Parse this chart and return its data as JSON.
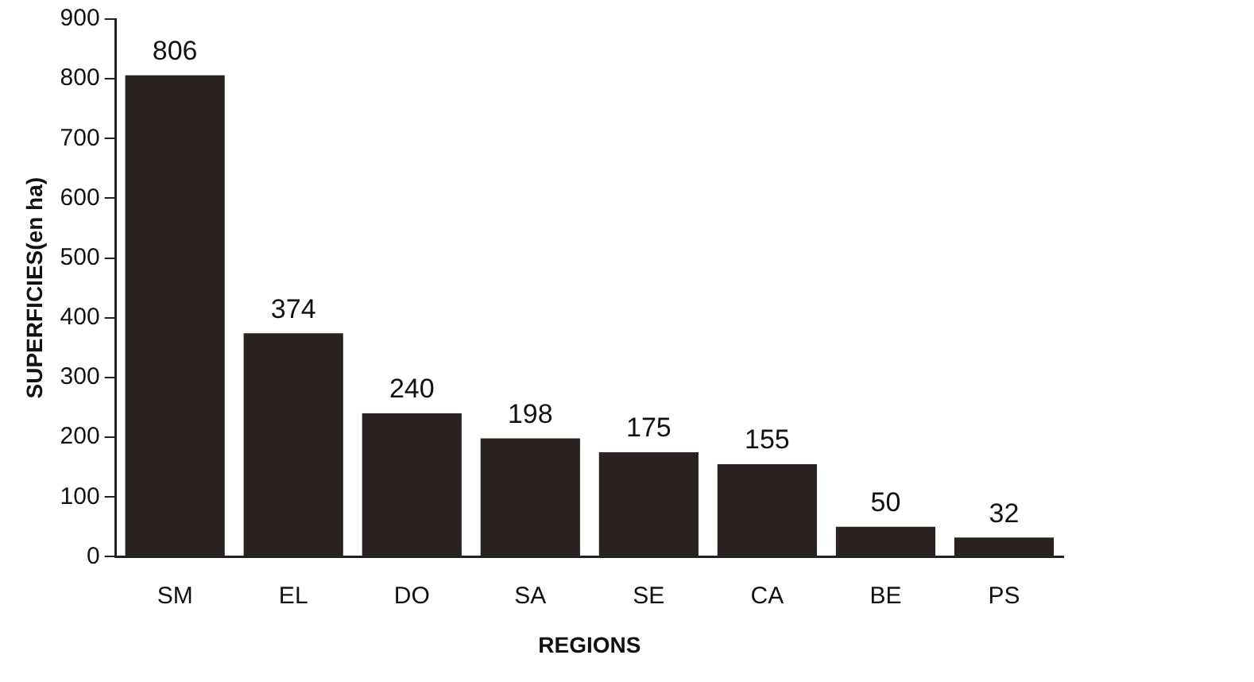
{
  "chart_data": {
    "type": "bar",
    "xlabel": "REGIONS",
    "ylabel": "SUPERFICIES(en ha)",
    "categories": [
      "SM",
      "EL",
      "DO",
      "SA",
      "SE",
      "CA",
      "BE",
      "PS"
    ],
    "values": [
      806,
      374,
      240,
      198,
      175,
      155,
      50,
      32
    ],
    "color": "#2a2220",
    "ylim": [
      0,
      900
    ],
    "yticks": [
      0,
      100,
      200,
      300,
      400,
      500,
      600,
      700,
      800,
      900
    ],
    "grid": false,
    "data_labels": true
  }
}
